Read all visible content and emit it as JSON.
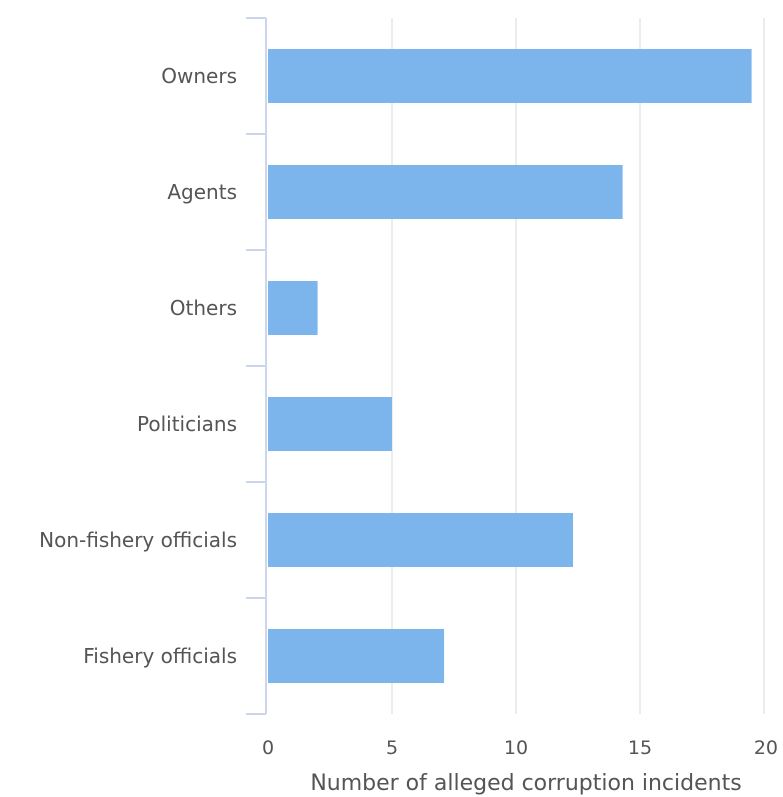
{
  "chart_data": {
    "type": "bar",
    "orientation": "horizontal",
    "categories": [
      "Owners",
      "Agents",
      "Others",
      "Politicians",
      "Non-fishery officials",
      "Fishery officials"
    ],
    "values": [
      19.5,
      14.3,
      2,
      5,
      12.3,
      7.1
    ],
    "title": "",
    "xlabel": "Number of alleged corruption incidents",
    "ylabel": "",
    "xlim": [
      0,
      20
    ],
    "xticks": [
      "0",
      "5",
      "10",
      "15",
      "20"
    ],
    "grid": true,
    "legend": "none",
    "bar_color": "#7cb5ec",
    "grid_color": "#e6e6e6",
    "axis_color": "#ccd6eb"
  }
}
